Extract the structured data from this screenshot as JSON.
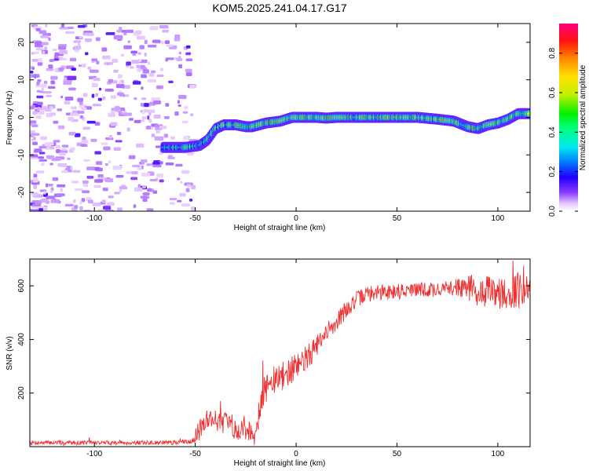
{
  "title": "KOM5.2025.241.04.17.G17",
  "colors": {
    "snr_line": "#f03030",
    "axis": "#000000",
    "background": "#ffffff"
  },
  "chart_data": [
    {
      "type": "heatmap",
      "name": "spectrogram",
      "xlabel": "Height of straight line (km)",
      "ylabel": "Frequency (Hz)",
      "xlim": [
        -132,
        116
      ],
      "ylim": [
        -25,
        25
      ],
      "xticks": [
        -100,
        -50,
        0,
        50,
        100
      ],
      "yticks": [
        -20,
        -10,
        0,
        10,
        20
      ],
      "colorbar": {
        "label": "Normalized spectral amplitude",
        "range": [
          0,
          0.95
        ],
        "ticks": [
          0.0,
          0.2,
          0.4,
          0.6,
          0.8
        ]
      },
      "ridge": {
        "description_points": [
          [
            -65,
            -8
          ],
          [
            -55,
            -8
          ],
          [
            -48,
            -7.5
          ],
          [
            -44,
            -6
          ],
          [
            -40,
            -3
          ],
          [
            -36,
            -2
          ],
          [
            -30,
            -2
          ],
          [
            -25,
            -2.5
          ],
          [
            -22,
            -2.5
          ],
          [
            -15,
            -1.5
          ],
          [
            -8,
            -1
          ],
          [
            -2,
            0
          ],
          [
            5,
            0
          ],
          [
            10,
            0
          ],
          [
            15,
            -0.2
          ],
          [
            20,
            0
          ],
          [
            25,
            0
          ],
          [
            30,
            0
          ],
          [
            40,
            0
          ],
          [
            50,
            0
          ],
          [
            60,
            0
          ],
          [
            70,
            -0.5
          ],
          [
            78,
            -1
          ],
          [
            85,
            -2.5
          ],
          [
            90,
            -3
          ],
          [
            95,
            -2
          ],
          [
            100,
            -1.5
          ],
          [
            105,
            -0.5
          ],
          [
            110,
            1
          ],
          [
            116,
            1
          ]
        ],
        "peak_amplitude": 0.95
      }
    },
    {
      "type": "line",
      "name": "snr",
      "xlabel": "Height of straight line (km)",
      "ylabel": "SNR (v/v)",
      "xlim": [
        -132,
        116
      ],
      "ylim": [
        0,
        700
      ],
      "xticks": [
        -100,
        -50,
        0,
        50,
        100
      ],
      "yticks": [
        200,
        400,
        600
      ],
      "trend": [
        [
          -132,
          15
        ],
        [
          -60,
          15
        ],
        [
          -52,
          20
        ],
        [
          -48,
          60
        ],
        [
          -44,
          110
        ],
        [
          -40,
          100
        ],
        [
          -35,
          90
        ],
        [
          -30,
          70
        ],
        [
          -25,
          60
        ],
        [
          -20,
          60
        ],
        [
          -18,
          150
        ],
        [
          -15,
          220
        ],
        [
          -10,
          250
        ],
        [
          -5,
          270
        ],
        [
          0,
          300
        ],
        [
          5,
          330
        ],
        [
          10,
          370
        ],
        [
          15,
          420
        ],
        [
          20,
          470
        ],
        [
          25,
          510
        ],
        [
          30,
          550
        ],
        [
          35,
          570
        ],
        [
          40,
          575
        ],
        [
          50,
          580
        ],
        [
          60,
          585
        ],
        [
          70,
          585
        ],
        [
          80,
          595
        ],
        [
          85,
          595
        ],
        [
          90,
          580
        ],
        [
          100,
          575
        ],
        [
          116,
          580
        ]
      ],
      "noise": [
        [
          -132,
          8
        ],
        [
          -52,
          8
        ],
        [
          -48,
          40
        ],
        [
          -20,
          45
        ],
        [
          -18,
          60
        ],
        [
          0,
          50
        ],
        [
          30,
          30
        ],
        [
          80,
          30
        ],
        [
          85,
          55
        ],
        [
          116,
          70
        ]
      ]
    }
  ]
}
